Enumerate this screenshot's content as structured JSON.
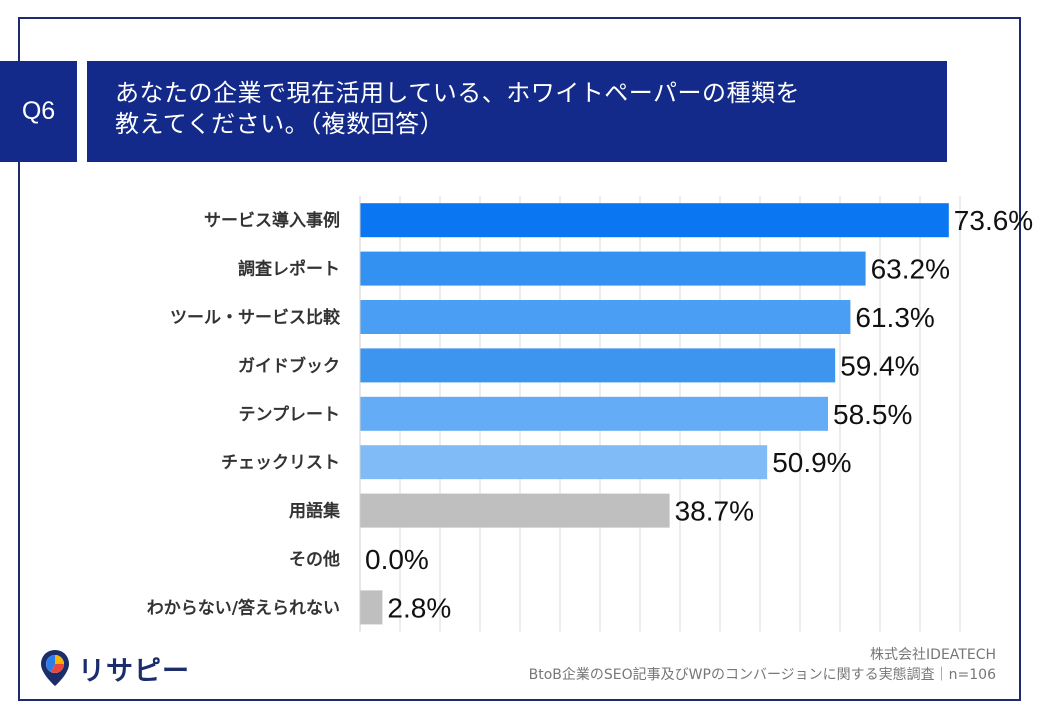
{
  "question": {
    "number": "Q6",
    "title_line1": "あなたの企業で現在活用している、ホワイトペーパーの種類を",
    "title_line2": "教えてください。（複数回答）"
  },
  "colors": {
    "badge": "#132a8a",
    "frame": "#1b2d6b",
    "grid": "#d9d9d9",
    "gray_bar": "#bfbfbf"
  },
  "chart_data": {
    "type": "bar",
    "orientation": "horizontal",
    "categories": [
      "サービス導入事例",
      "調査レポート",
      "ツール・サービス比較",
      "ガイドブック",
      "テンプレート",
      "チェックリスト",
      "用語集",
      "その他",
      "わからない/答えられない"
    ],
    "values": [
      73.6,
      63.2,
      61.3,
      59.4,
      58.5,
      50.9,
      38.7,
      0.0,
      2.8
    ],
    "value_labels": [
      "73.6%",
      "63.2%",
      "61.3%",
      "59.4%",
      "58.5%",
      "50.9%",
      "38.7%",
      "0.0%",
      "2.8%"
    ],
    "bar_colors": [
      "#0a76f2",
      "#3391f2",
      "#4a9ef4",
      "#3d95f0",
      "#64acf6",
      "#80bbf8",
      "#bfbfbf",
      "#bfbfbf",
      "#bfbfbf"
    ],
    "xlim": [
      0,
      80
    ],
    "grid": true,
    "legend": false
  },
  "brand": {
    "name": "リサピー"
  },
  "footer": {
    "company": "株式会社IDEATECH",
    "survey": "BtoB企業のSEO記事及びWPのコンバージョンに関する実態調査｜n=106"
  }
}
